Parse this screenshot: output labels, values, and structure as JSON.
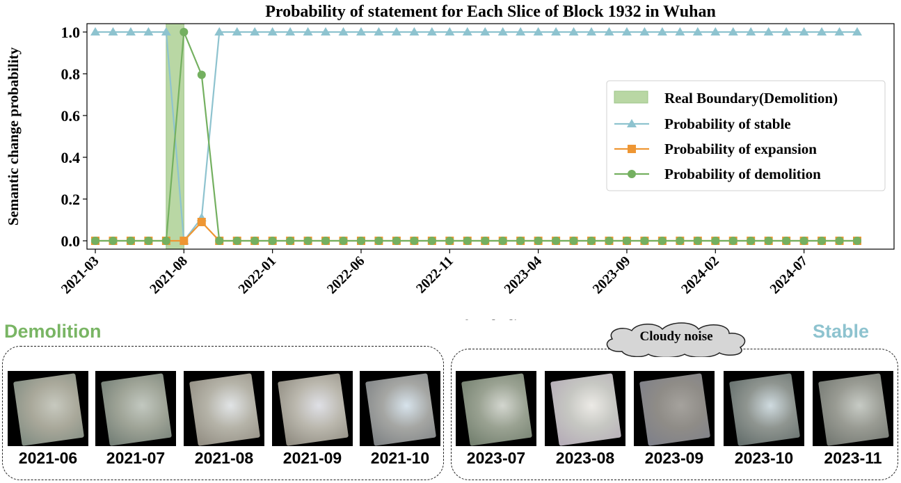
{
  "chart_data": {
    "type": "line",
    "title": "Probability of statement for Each Slice of Block 1932 in Wuhan",
    "xlabel": "Date of each slice",
    "ylabel": "Semantic change probability",
    "x": [
      "2021-03",
      "2021-04",
      "2021-05",
      "2021-06",
      "2021-07",
      "2021-08",
      "2021-09",
      "2021-10",
      "2021-11",
      "2021-12",
      "2022-01",
      "2022-02",
      "2022-03",
      "2022-04",
      "2022-05",
      "2022-06",
      "2022-07",
      "2022-08",
      "2022-09",
      "2022-10",
      "2022-11",
      "2022-12",
      "2023-01",
      "2023-02",
      "2023-03",
      "2023-04",
      "2023-05",
      "2023-06",
      "2023-07",
      "2023-08",
      "2023-09",
      "2023-10",
      "2023-11",
      "2023-12",
      "2024-01",
      "2024-02",
      "2024-03",
      "2024-04",
      "2024-05",
      "2024-06",
      "2024-07",
      "2024-08",
      "2024-09",
      "2024-10"
    ],
    "xticks": [
      "2021-03",
      "2021-08",
      "2022-01",
      "2022-06",
      "2022-11",
      "2023-04",
      "2023-09",
      "2024-02",
      "2024-07"
    ],
    "yticks": [
      "0.0",
      "0.2",
      "0.4",
      "0.6",
      "0.8",
      "1.0"
    ],
    "ylim": [
      -0.04,
      1.04
    ],
    "series": [
      {
        "name": "Probability of stable",
        "color": "#8ec3cf",
        "marker": "triangle",
        "values": [
          1,
          1,
          1,
          1,
          1,
          0,
          0.11,
          1,
          1,
          1,
          1,
          1,
          1,
          1,
          1,
          1,
          1,
          1,
          1,
          1,
          1,
          1,
          1,
          1,
          1,
          1,
          1,
          1,
          1,
          1,
          1,
          1,
          1,
          1,
          1,
          1,
          1,
          1,
          1,
          1,
          1,
          1,
          1,
          1
        ]
      },
      {
        "name": "Probability of expansion",
        "color": "#ee9633",
        "marker": "square",
        "values": [
          0,
          0,
          0,
          0,
          0,
          0,
          0.09,
          0,
          0,
          0,
          0,
          0,
          0,
          0,
          0,
          0,
          0,
          0,
          0,
          0,
          0,
          0,
          0,
          0,
          0,
          0,
          0,
          0,
          0,
          0,
          0,
          0,
          0,
          0,
          0,
          0,
          0,
          0,
          0,
          0,
          0,
          0,
          0,
          0
        ]
      },
      {
        "name": "Probability of demolition",
        "color": "#74b060",
        "marker": "circle",
        "values": [
          0,
          0,
          0,
          0,
          0,
          1,
          0.795,
          0,
          0,
          0,
          0,
          0,
          0,
          0,
          0,
          0,
          0,
          0,
          0,
          0,
          0,
          0,
          0,
          0,
          0,
          0,
          0,
          0,
          0,
          0,
          0,
          0,
          0,
          0,
          0,
          0,
          0,
          0,
          0,
          0,
          0,
          0,
          0,
          0
        ]
      }
    ],
    "boundary": {
      "name": "Real Boundary(Demolition)",
      "from": "2021-07",
      "to": "2021-08",
      "color": "#b9d7a4"
    },
    "legend": "center-right",
    "grid": false
  },
  "labels": {
    "demolition": "Demolition",
    "stable": "Stable",
    "cloud": "Cloudy noise"
  },
  "thumbnails": {
    "demolition": [
      {
        "date": "2021-06",
        "tone": [
          "#a9a89a",
          "#c7c9bf",
          "#7d8a80"
        ]
      },
      {
        "date": "2021-07",
        "tone": [
          "#9fa497",
          "#c2c8c0",
          "#6f7b73"
        ]
      },
      {
        "date": "2021-08",
        "tone": [
          "#b5b3a8",
          "#e1e4e6",
          "#8f8a7f"
        ]
      },
      {
        "date": "2021-09",
        "tone": [
          "#bab7ad",
          "#dfe0e6",
          "#8b877c"
        ]
      },
      {
        "date": "2021-10",
        "tone": [
          "#a5a6a3",
          "#d7e3ec",
          "#7b7f82"
        ]
      }
    ],
    "stable": [
      {
        "date": "2023-07",
        "tone": [
          "#9aa292",
          "#d3d6cf",
          "#6f7c6b"
        ]
      },
      {
        "date": "2023-08",
        "tone": [
          "#c6c7c2",
          "#eceae6",
          "#b3a9b6"
        ]
      },
      {
        "date": "2023-09",
        "tone": [
          "#8f8c87",
          "#a5a29d",
          "#7d7f8a"
        ]
      },
      {
        "date": "2023-10",
        "tone": [
          "#8f9590",
          "#cfdbe0",
          "#5f6a68"
        ]
      },
      {
        "date": "2023-11",
        "tone": [
          "#999b93",
          "#c7cbc5",
          "#70756f"
        ]
      }
    ]
  }
}
